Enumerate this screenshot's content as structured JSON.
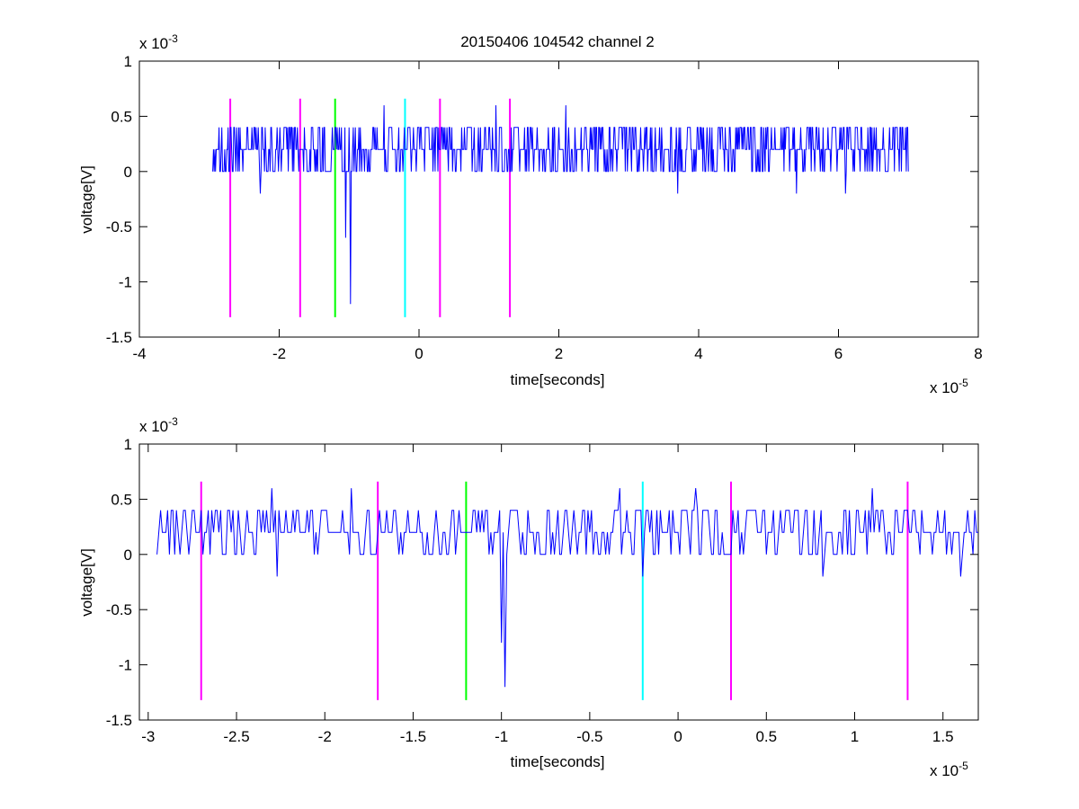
{
  "figure": {
    "title": "20150406 104542 channel 2"
  },
  "chart_data": [
    {
      "type": "line",
      "title": "20150406 104542 channel 2",
      "xlabel": "time[seconds]",
      "ylabel": "voltage[V]",
      "x_exponent_label": "x 10",
      "x_exponent_power": "-5",
      "y_exponent_label": "x 10",
      "y_exponent_power": "-3",
      "x_scale": 1e-05,
      "y_scale": 0.001,
      "xlim": [
        -4,
        8
      ],
      "ylim": [
        -1.5,
        1
      ],
      "xticks": [
        -4,
        -2,
        0,
        2,
        4,
        6,
        8
      ],
      "xtick_labels": [
        "-4",
        "-2",
        "0",
        "2",
        "4",
        "6",
        "8"
      ],
      "yticks": [
        -1.5,
        -1,
        -0.5,
        0,
        0.5,
        1
      ],
      "ytick_labels": [
        "-1.5",
        "-1",
        "-0.5",
        "0",
        "0.5",
        "1"
      ],
      "grid": false,
      "signal": {
        "color": "#0000ff",
        "x_range": [
          -2.95,
          7.0
        ],
        "baseline": 0.2,
        "levels": [
          0.0,
          0.2,
          0.4
        ],
        "spikes": [
          {
            "x": -0.98,
            "y": -1.2
          },
          {
            "x": -1.05,
            "y": -0.6
          },
          {
            "x": -2.27,
            "y": -0.2
          },
          {
            "x": -0.5,
            "y": 0.6
          },
          {
            "x": 1.1,
            "y": 0.6
          },
          {
            "x": 2.1,
            "y": 0.6
          },
          {
            "x": 3.7,
            "y": -0.2
          },
          {
            "x": 6.1,
            "y": 0.6
          },
          {
            "x": 6.1,
            "y": -0.2
          },
          {
            "x": 5.4,
            "y": -0.2
          }
        ]
      },
      "markers": [
        {
          "x": -2.7,
          "color": "#ff00ff"
        },
        {
          "x": -1.7,
          "color": "#ff00ff"
        },
        {
          "x": -1.2,
          "color": "#00ff00"
        },
        {
          "x": -0.2,
          "color": "#00ffff"
        },
        {
          "x": 0.3,
          "color": "#ff00ff"
        },
        {
          "x": 1.3,
          "color": "#ff00ff"
        }
      ],
      "marker_range": [
        -1.32,
        0.66
      ]
    },
    {
      "type": "line",
      "xlabel": "time[seconds]",
      "ylabel": "voltage[V]",
      "x_exponent_label": "x 10",
      "x_exponent_power": "-5",
      "y_exponent_label": "x 10",
      "y_exponent_power": "-3",
      "x_scale": 1e-05,
      "y_scale": 0.001,
      "xlim": [
        -3.05,
        1.7
      ],
      "ylim": [
        -1.5,
        1
      ],
      "xticks": [
        -3,
        -2.5,
        -2,
        -1.5,
        -1,
        -0.5,
        0,
        0.5,
        1,
        1.5
      ],
      "xtick_labels": [
        "-3",
        "-2.5",
        "-2",
        "-1.5",
        "-1",
        "-0.5",
        "0",
        "0.5",
        "1",
        "1.5"
      ],
      "yticks": [
        -1.5,
        -1,
        -0.5,
        0,
        0.5,
        1
      ],
      "ytick_labels": [
        "-1.5",
        "-1",
        "-0.5",
        "0",
        "0.5",
        "1"
      ],
      "grid": false,
      "signal": {
        "color": "#0000ff",
        "x_range": [
          -2.95,
          1.7
        ],
        "baseline": 0.2,
        "levels": [
          0.0,
          0.2,
          0.4
        ],
        "spikes": [
          {
            "x": -0.98,
            "y": -1.2
          },
          {
            "x": -1.0,
            "y": -0.8
          },
          {
            "x": -2.27,
            "y": -0.2
          },
          {
            "x": -1.85,
            "y": 0.6
          },
          {
            "x": -2.3,
            "y": 0.6
          },
          {
            "x": -0.33,
            "y": 0.6
          },
          {
            "x": -0.2,
            "y": -0.2
          },
          {
            "x": 0.1,
            "y": 0.6
          },
          {
            "x": 1.1,
            "y": 0.6
          },
          {
            "x": 0.82,
            "y": -0.2
          },
          {
            "x": 1.6,
            "y": -0.2
          }
        ]
      },
      "markers": [
        {
          "x": -2.7,
          "color": "#ff00ff"
        },
        {
          "x": -1.7,
          "color": "#ff00ff"
        },
        {
          "x": -1.2,
          "color": "#00ff00"
        },
        {
          "x": -0.2,
          "color": "#00ffff"
        },
        {
          "x": 0.3,
          "color": "#ff00ff"
        },
        {
          "x": 1.3,
          "color": "#ff00ff"
        }
      ],
      "marker_range": [
        -1.32,
        0.66
      ]
    }
  ]
}
